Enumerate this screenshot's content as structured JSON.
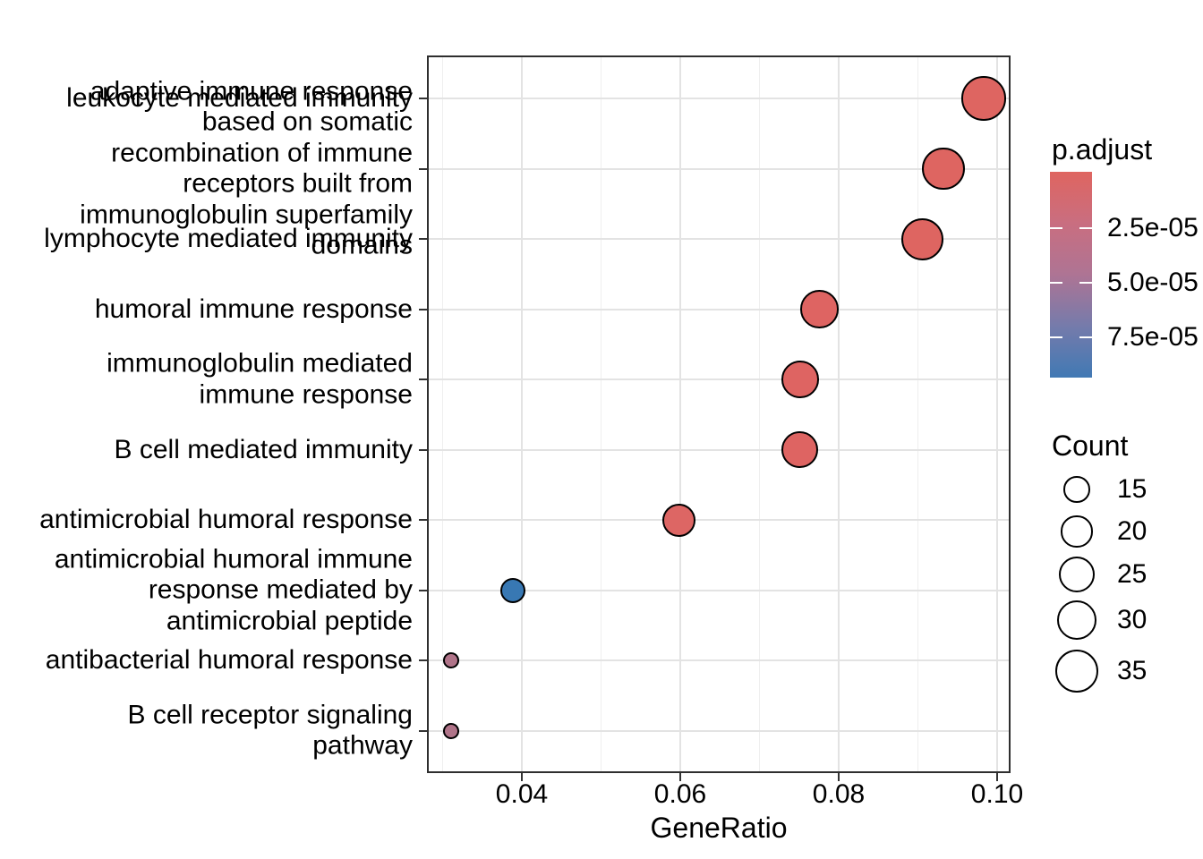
{
  "chart_data": {
    "type": "scatter",
    "title": "",
    "xlabel": "GeneRatio",
    "ylabel": "",
    "grid": "on",
    "legend_position": "right",
    "x_range": [
      0.028,
      0.102
    ],
    "x_ticks": {
      "labels": [
        "0.04",
        "0.06",
        "0.08",
        "0.10"
      ],
      "values": [
        0.04,
        0.06,
        0.08,
        0.1
      ],
      "minor_values": [
        0.03,
        0.05,
        0.07,
        0.09
      ]
    },
    "color_scale": {
      "title": "p.adjust",
      "tick_labels": [
        "2.5e-05",
        "5.0e-05",
        "7.5e-05"
      ],
      "tick_values": [
        2.5e-05,
        5e-05,
        7.5e-05
      ],
      "gradient_stops": [
        "#df6560",
        "#c96e80",
        "#ae7494",
        "#757bab",
        "#4179b4"
      ]
    },
    "size_scale": {
      "title": "Count",
      "legend_values": [
        15,
        20,
        25,
        30,
        35
      ]
    },
    "points": [
      {
        "label": "leukocyte mediated immunity",
        "label_lines": [
          "leukocyte mediated immunity"
        ],
        "gene_ratio": 0.0983,
        "count": 36,
        "p_adjust": 2e-06,
        "color": "#de6561"
      },
      {
        "label": "adaptive immune response based on somatic recombination of immune receptors built from immunoglobulin superfamily domains",
        "label_lines": [
          "adaptive immune response",
          "based on somatic",
          "recombination of immune",
          "receptors built from",
          "immunoglobulin superfamily",
          "domains"
        ],
        "gene_ratio": 0.0932,
        "count": 34,
        "p_adjust": 2e-06,
        "color": "#de6561"
      },
      {
        "label": "lymphocyte mediated immunity",
        "label_lines": [
          "lymphocyte mediated immunity"
        ],
        "gene_ratio": 0.0906,
        "count": 33,
        "p_adjust": 2.6e-06,
        "color": "#de6561"
      },
      {
        "label": "humoral immune response",
        "label_lines": [
          "humoral immune response"
        ],
        "gene_ratio": 0.0776,
        "count": 28,
        "p_adjust": 7e-06,
        "color": "#de6462"
      },
      {
        "label": "immunoglobulin mediated immune response",
        "label_lines": [
          "immunoglobulin mediated",
          "immune response"
        ],
        "gene_ratio": 0.0751,
        "count": 27,
        "p_adjust": 8e-06,
        "color": "#de6462"
      },
      {
        "label": "B cell mediated immunity",
        "label_lines": [
          "B cell mediated immunity"
        ],
        "gene_ratio": 0.0751,
        "count": 26,
        "p_adjust": 8e-06,
        "color": "#de6462"
      },
      {
        "label": "antimicrobial humoral response",
        "label_lines": [
          "antimicrobial humoral response"
        ],
        "gene_ratio": 0.0598,
        "count": 22,
        "p_adjust": 1.3e-05,
        "color": "#dd6664"
      },
      {
        "label": "antimicrobial humoral immune response mediated by antimicrobial peptide",
        "label_lines": [
          "antimicrobial humoral immune",
          "response mediated by",
          "antimicrobial peptide"
        ],
        "gene_ratio": 0.0389,
        "count": 14,
        "p_adjust": 9e-05,
        "color": "#3878b3"
      },
      {
        "label": "antibacterial humoral response",
        "label_lines": [
          "antibacterial humoral response"
        ],
        "gene_ratio": 0.0311,
        "count": 7,
        "p_adjust": 4.6e-05,
        "color": "#b07489"
      },
      {
        "label": "B cell receptor signaling pathway",
        "label_lines": [
          "B cell receptor signaling",
          "pathway"
        ],
        "gene_ratio": 0.0311,
        "count": 7,
        "p_adjust": 4.6e-05,
        "color": "#b07489"
      }
    ]
  }
}
